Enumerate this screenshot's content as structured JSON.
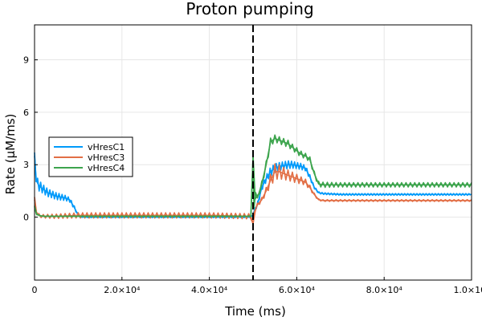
{
  "chart_data": {
    "type": "line",
    "title": "Proton pumping",
    "xlabel": "Time (ms)",
    "ylabel": "Rate (μM/ms)",
    "xlim": [
      0,
      100000
    ],
    "ylim": [
      -3.6,
      11.0
    ],
    "x_ticks": [
      {
        "value": 0,
        "label": "0"
      },
      {
        "value": 20000,
        "label": "2.0×10⁴"
      },
      {
        "value": 40000,
        "label": "4.0×10⁴"
      },
      {
        "value": 60000,
        "label": "6.0×10⁴"
      },
      {
        "value": 80000,
        "label": "8.0×10⁴"
      },
      {
        "value": 100000,
        "label": "1.0×10⁵"
      }
    ],
    "y_ticks": [
      {
        "value": 0,
        "label": "0"
      },
      {
        "value": 3,
        "label": "3"
      },
      {
        "value": 6,
        "label": "6"
      },
      {
        "value": 9,
        "label": "9"
      }
    ],
    "grid": true,
    "legend_position": "left-middle",
    "vline": {
      "x": 50000,
      "style": "dashed",
      "color": "#000000"
    },
    "series": [
      {
        "name": "vHresC1",
        "color": "#009AFA",
        "x": [
          0,
          400,
          1000,
          2000,
          3000,
          4000,
          5000,
          6000,
          7000,
          8000,
          9000,
          10000,
          11000,
          12000,
          20000,
          30000,
          40000,
          49500,
          50000,
          50200,
          50500,
          51000,
          51500,
          52000,
          53000,
          54000,
          55000,
          56000,
          57000,
          58000,
          59000,
          60000,
          61000,
          62000,
          63000,
          64000,
          65000,
          66000,
          70000,
          80000,
          90000,
          100000
        ],
        "values": [
          3.5,
          2.1,
          1.8,
          1.6,
          1.4,
          1.3,
          1.2,
          1.15,
          1.1,
          1.0,
          0.6,
          0.1,
          0.0,
          0.0,
          0.0,
          0.0,
          0.0,
          0.0,
          0.1,
          0.3,
          0.5,
          0.7,
          1.2,
          1.7,
          2.2,
          2.6,
          2.8,
          2.9,
          2.95,
          3.0,
          3.0,
          2.95,
          2.9,
          2.8,
          2.3,
          1.7,
          1.4,
          1.35,
          1.3,
          1.3,
          1.3,
          1.3
        ],
        "osc_amplitude": [
          0.4,
          0.5,
          0.6,
          0.5,
          0.45,
          0.4,
          0.4,
          0.35,
          0.3,
          0.25,
          0.2,
          0.1,
          0.05,
          0.05,
          0.05,
          0.05,
          0.05,
          0.05,
          0.1,
          0.15,
          0.2,
          0.25,
          0.3,
          0.35,
          0.4,
          0.5,
          0.5,
          0.45,
          0.45,
          0.45,
          0.4,
          0.35,
          0.35,
          0.3,
          0.25,
          0.15,
          0.1,
          0.1,
          0.1,
          0.1,
          0.1,
          0.1
        ]
      },
      {
        "name": "vHresC3",
        "color": "#E26F46",
        "x": [
          0,
          400,
          1000,
          2000,
          5000,
          10000,
          15000,
          20000,
          30000,
          40000,
          49500,
          50000,
          50300,
          51000,
          52000,
          53000,
          54000,
          55000,
          56000,
          57000,
          58000,
          59000,
          60000,
          61000,
          62000,
          63000,
          64000,
          65000,
          66000,
          70000,
          80000,
          90000,
          100000
        ],
        "values": [
          1.0,
          0.3,
          0.1,
          0.05,
          0.05,
          0.1,
          0.1,
          0.1,
          0.1,
          0.1,
          0.05,
          -0.4,
          0.3,
          0.7,
          1.0,
          1.5,
          2.1,
          2.6,
          2.6,
          2.5,
          2.4,
          2.3,
          2.2,
          2.1,
          2.0,
          1.7,
          1.3,
          1.0,
          0.95,
          0.95,
          0.95,
          0.95,
          0.95
        ],
        "osc_amplitude": [
          0.3,
          0.25,
          0.2,
          0.2,
          0.25,
          0.3,
          0.3,
          0.3,
          0.3,
          0.3,
          0.3,
          0.1,
          0.15,
          0.2,
          0.25,
          0.4,
          0.7,
          0.9,
          0.8,
          0.7,
          0.6,
          0.55,
          0.5,
          0.4,
          0.35,
          0.25,
          0.15,
          0.1,
          0.1,
          0.1,
          0.1,
          0.1,
          0.1
        ]
      },
      {
        "name": "vHresC4",
        "color": "#3DA44D",
        "x": [
          0,
          400,
          1000,
          2000,
          5000,
          10000,
          20000,
          30000,
          40000,
          49500,
          50000,
          50200,
          50600,
          51000,
          52000,
          53000,
          54000,
          55000,
          56000,
          57000,
          58000,
          59000,
          60000,
          61000,
          62000,
          63000,
          64000,
          65000,
          66000,
          70000,
          80000,
          90000,
          100000
        ],
        "values": [
          0.6,
          0.2,
          0.1,
          0.05,
          0.05,
          0.05,
          0.05,
          0.05,
          0.05,
          0.05,
          3.4,
          0.5,
          1.4,
          1.1,
          1.9,
          3.0,
          4.3,
          4.5,
          4.4,
          4.3,
          4.2,
          4.0,
          3.8,
          3.6,
          3.5,
          3.3,
          2.5,
          1.9,
          1.85,
          1.85,
          1.85,
          1.85,
          1.85
        ],
        "osc_amplitude": [
          0.1,
          0.1,
          0.05,
          0.05,
          0.05,
          0.05,
          0.05,
          0.05,
          0.05,
          0.05,
          0.3,
          0.2,
          0.3,
          0.3,
          0.3,
          0.4,
          0.45,
          0.4,
          0.4,
          0.4,
          0.4,
          0.35,
          0.35,
          0.35,
          0.3,
          0.3,
          0.25,
          0.3,
          0.3,
          0.25,
          0.25,
          0.25,
          0.25
        ]
      }
    ]
  }
}
